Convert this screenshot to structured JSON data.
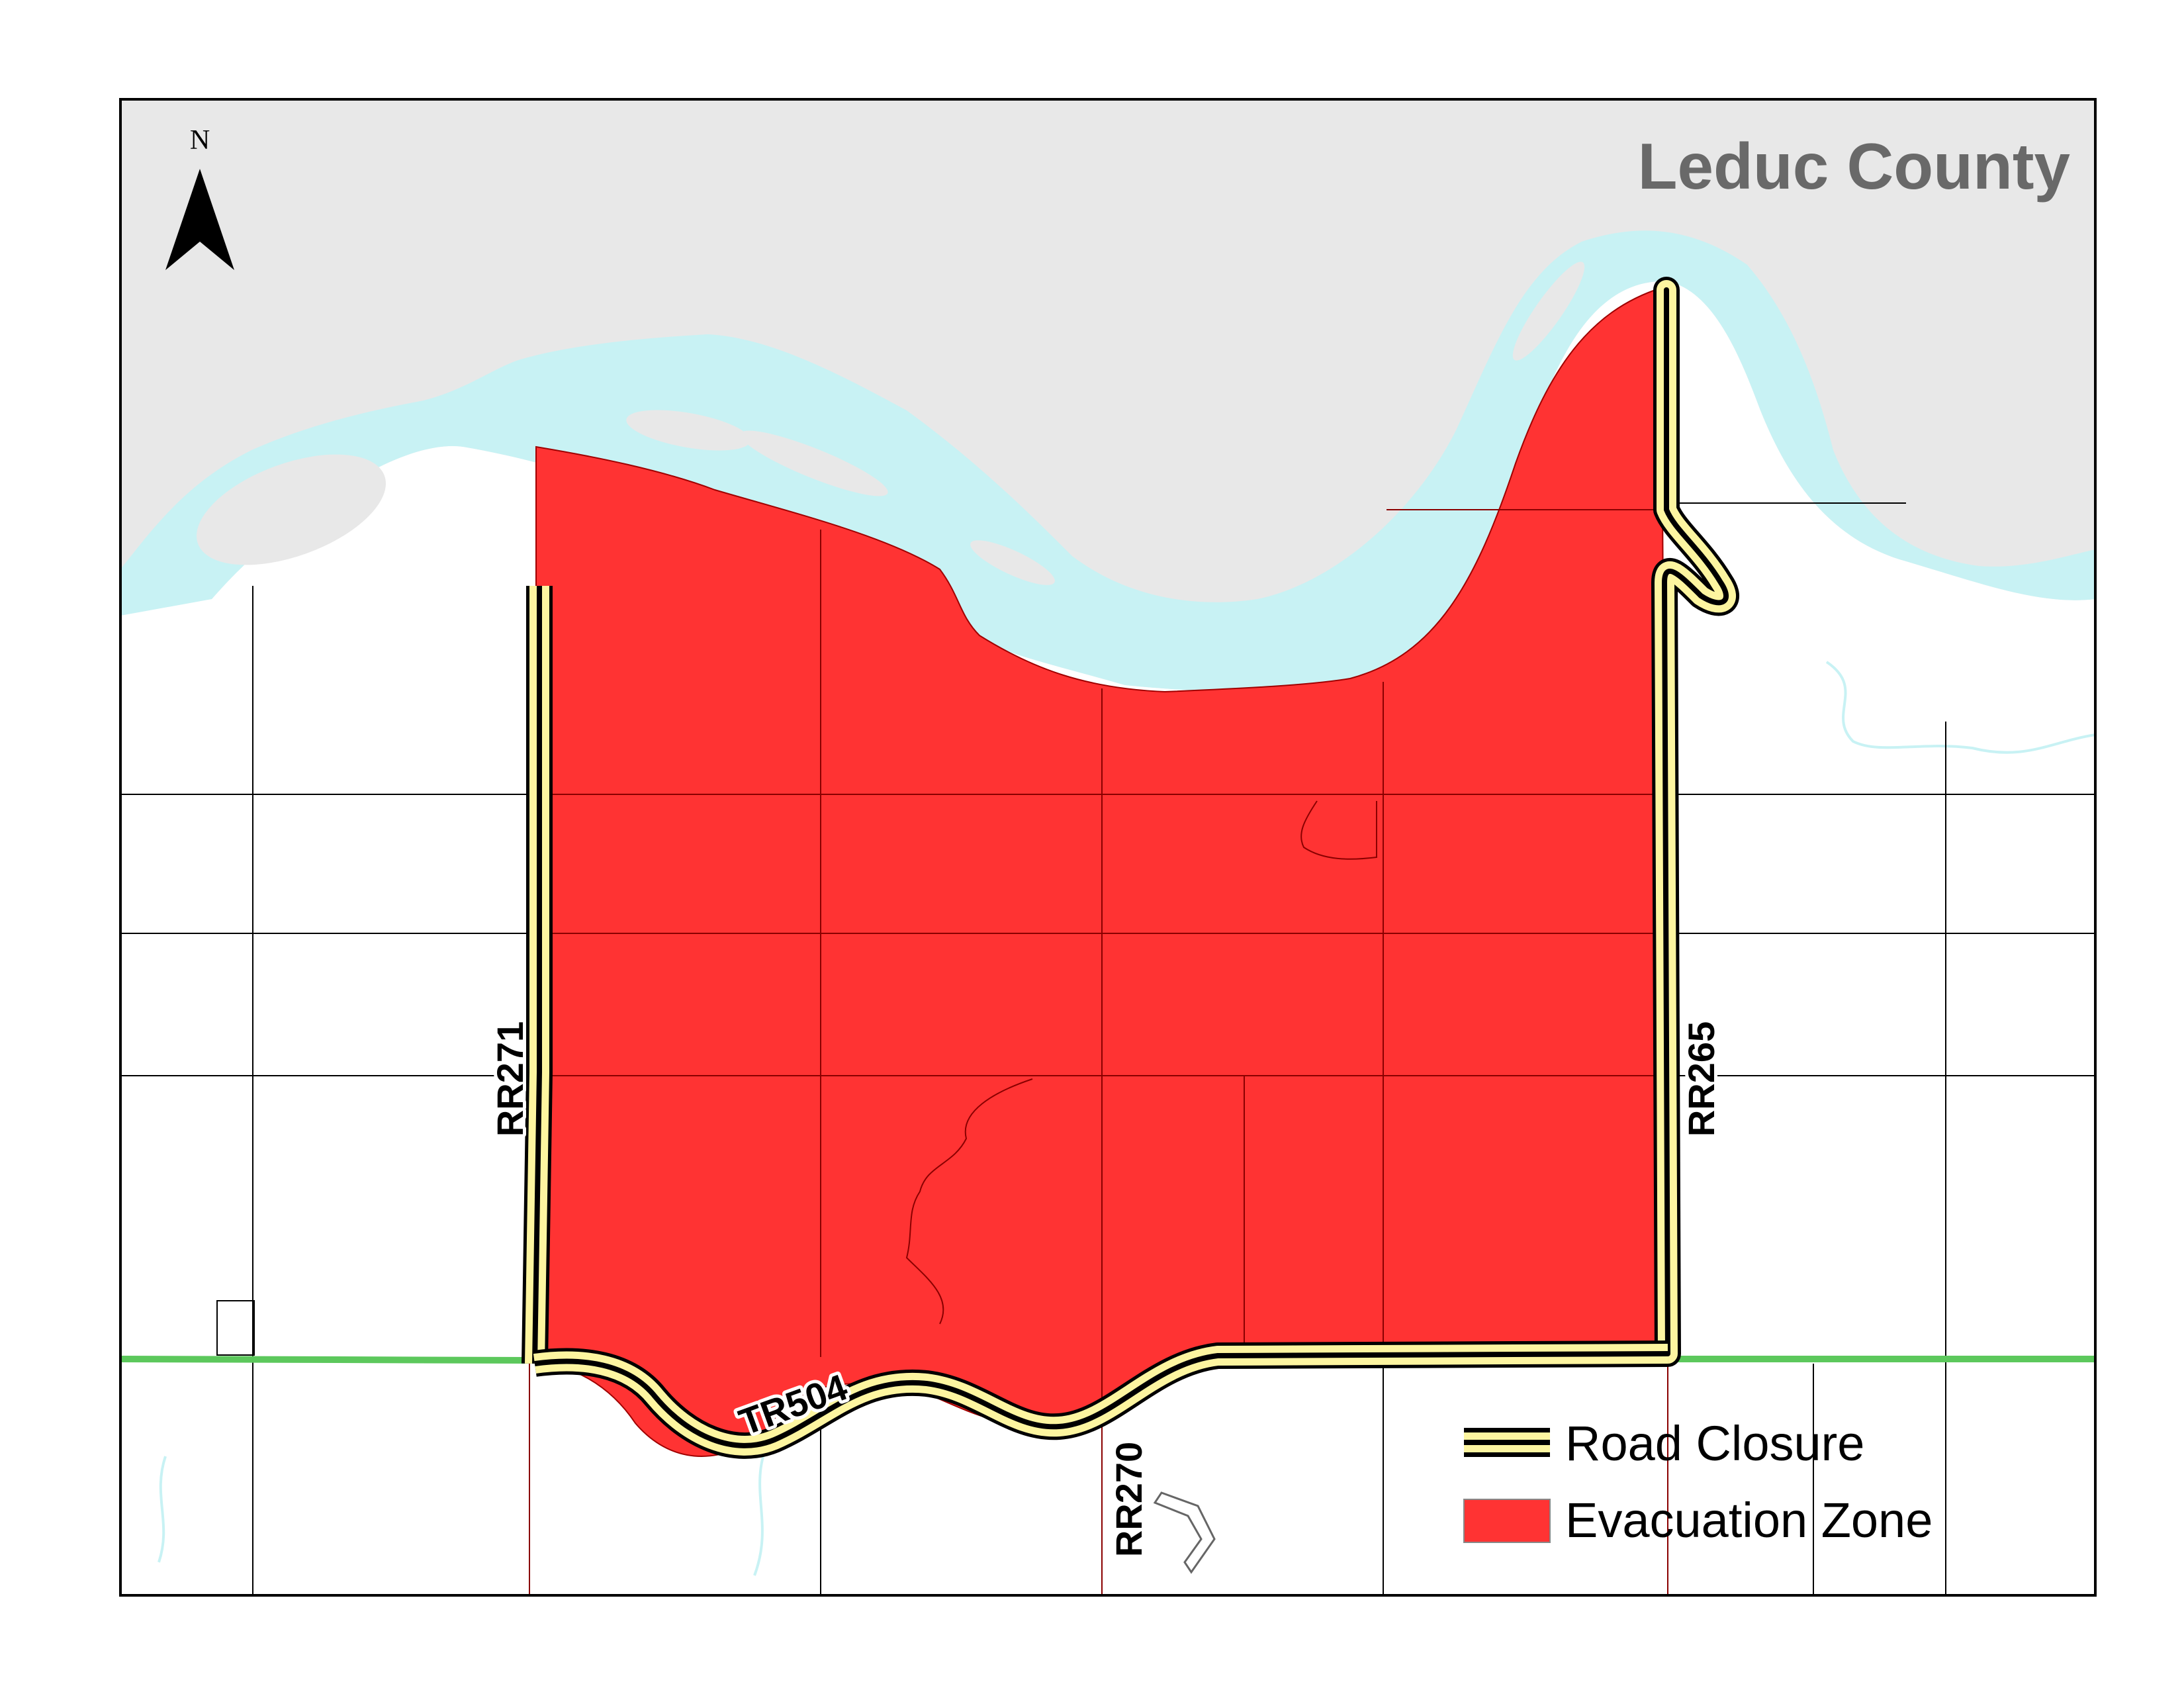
{
  "map": {
    "title": "Leduc County",
    "north_label": "N"
  },
  "roads": {
    "rr271": "RR271",
    "rr265": "RR265",
    "rr270": "RR270",
    "tr504": "TR504"
  },
  "legend": {
    "road_closure": "Road Closure",
    "evacuation_zone": "Evacuation Zone"
  },
  "colors": {
    "river": "#c8f2f4",
    "north_bank": "#e8e8e8",
    "evacuation_zone": "#ff3333",
    "road_closure_fill": "#fdf5a0",
    "road_closure_line": "#000000",
    "highway_green": "#5cc85c",
    "title_gray": "#696969"
  }
}
